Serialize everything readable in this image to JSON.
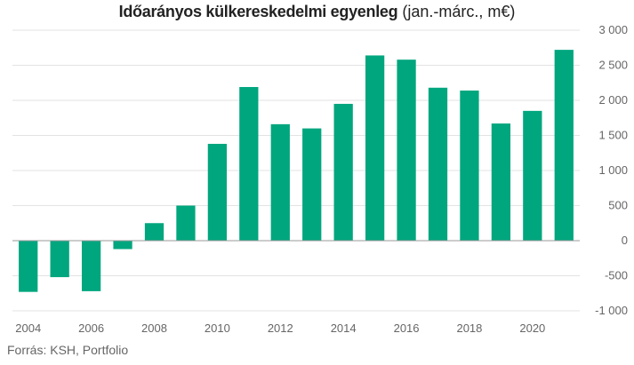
{
  "chart_data": {
    "type": "bar",
    "title_bold": "Időarányos külkereskedelmi egyenleg",
    "title_normal": "(jan.-márc., m€)",
    "source": "Forrás: KSH, Portfolio",
    "color": "#00a67e",
    "categories": [
      "2004",
      "2005",
      "2006",
      "2007",
      "2008",
      "2009",
      "2010",
      "2011",
      "2012",
      "2013",
      "2014",
      "2015",
      "2016",
      "2017",
      "2018",
      "2019",
      "2020",
      "2021"
    ],
    "x_tick_labels": [
      "2004",
      "2006",
      "2008",
      "2010",
      "2012",
      "2014",
      "2016",
      "2018",
      "2020"
    ],
    "values": [
      -730,
      -520,
      -720,
      -120,
      250,
      500,
      1380,
      2190,
      1660,
      1600,
      1950,
      2640,
      2580,
      2180,
      2140,
      1670,
      1850,
      2720
    ],
    "ylim": [
      -1000,
      3000
    ],
    "y_ticks": [
      3000,
      2500,
      2000,
      1500,
      1000,
      500,
      0,
      -500,
      -1000
    ],
    "y_tick_labels": [
      "3 000",
      "2 500",
      "2 000",
      "1 500",
      "1 000",
      "500",
      "0",
      "-500",
      "-1 000"
    ],
    "grid": true,
    "y_axis_side": "right"
  }
}
